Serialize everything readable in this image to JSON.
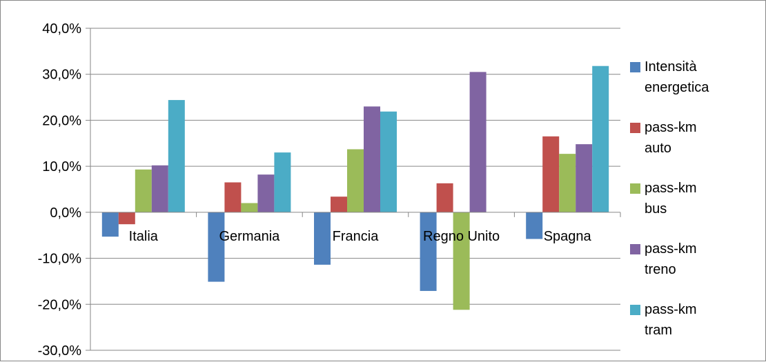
{
  "chart_data": {
    "type": "bar",
    "title": "",
    "xlabel": "",
    "ylabel": "",
    "ylim": [
      -30,
      40
    ],
    "yticks": [
      40,
      30,
      20,
      10,
      0,
      -10,
      -20,
      -30
    ],
    "ytick_labels": [
      "40,0%",
      "30,0%",
      "20,0%",
      "10,0%",
      "0,0%",
      "-10,0%",
      "-20,0%",
      "-30,0%"
    ],
    "grid": true,
    "legend_position": "right",
    "categories": [
      "Italia",
      "Germania",
      "Francia",
      "Regno Unito",
      "Spagna"
    ],
    "series": [
      {
        "name": "Intensità energetica",
        "name_lines": [
          "Intensità",
          "energetica"
        ],
        "color": "#4F81BD",
        "values": [
          -5.3,
          -15.1,
          -11.4,
          -17.1,
          -5.8
        ]
      },
      {
        "name": "pass-km auto",
        "name_lines": [
          "pass-km",
          "auto"
        ],
        "color": "#C0504D",
        "values": [
          -2.6,
          6.5,
          3.4,
          6.3,
          16.5
        ]
      },
      {
        "name": "pass-km bus",
        "name_lines": [
          "pass-km",
          "bus"
        ],
        "color": "#9BBB59",
        "values": [
          9.3,
          2.0,
          13.7,
          -21.2,
          12.7
        ]
      },
      {
        "name": "pass-km treno",
        "name_lines": [
          "pass-km",
          "treno"
        ],
        "color": "#8064A2",
        "values": [
          10.2,
          8.2,
          23.0,
          30.5,
          14.8
        ]
      },
      {
        "name": "pass-km tram",
        "name_lines": [
          "pass-km",
          "tram"
        ],
        "color": "#4BACC6",
        "values": [
          24.4,
          13.0,
          21.9,
          0.0,
          31.8
        ]
      }
    ]
  }
}
